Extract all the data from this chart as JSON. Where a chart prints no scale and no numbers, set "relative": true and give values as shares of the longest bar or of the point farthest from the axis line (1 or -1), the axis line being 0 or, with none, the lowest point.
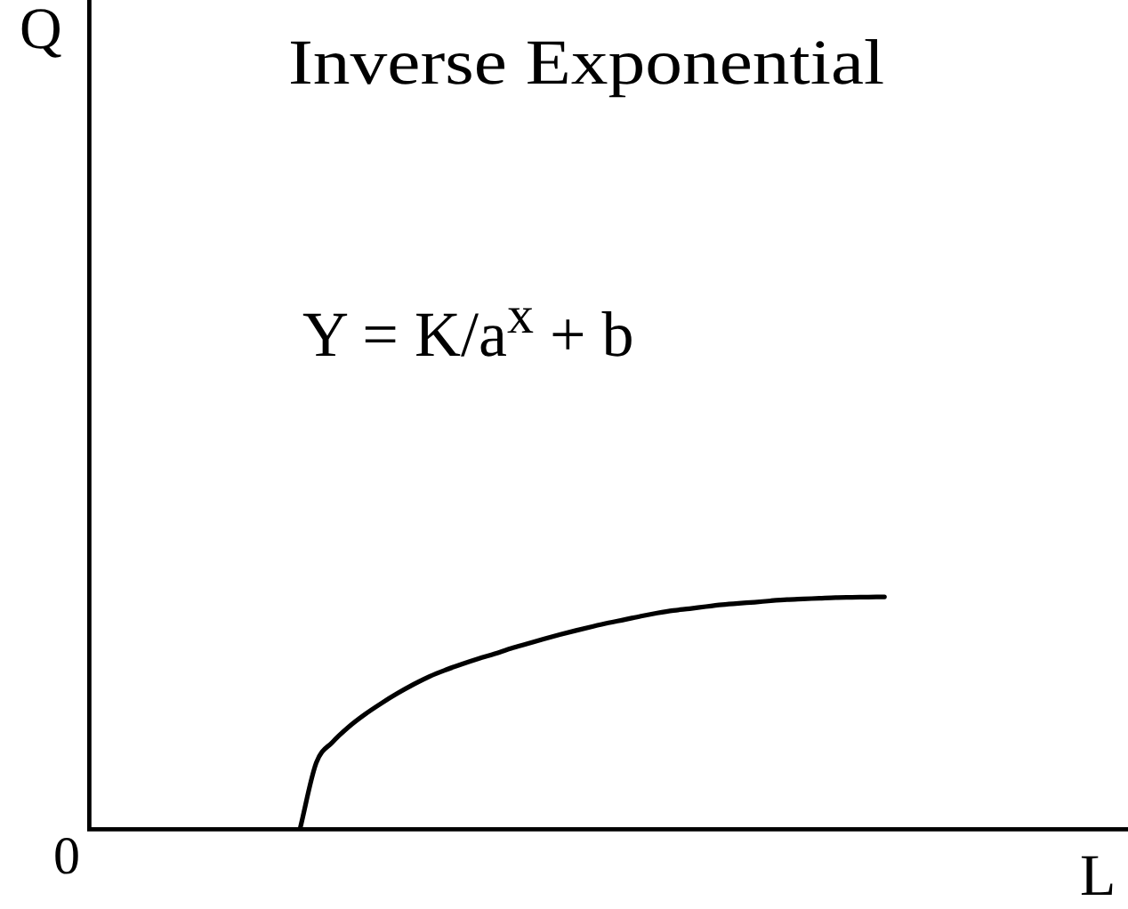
{
  "chart_data": {
    "type": "line",
    "title": "Inverse Exponential",
    "xlabel": "L",
    "annotations": [
      "Q",
      "Y = K/a$^{x}$ + b",
      "0"
    ],
    "categories": [
      null,
      null,
      null,
      null,
      null,
      null,
      null,
      null,
      null,
      null,
      null,
      null,
      null,
      null,
      null,
      null,
      null,
      null,
      null,
      null,
      null,
      null,
      null,
      null,
      null,
      null,
      null,
      null,
      null,
      null,
      null,
      null,
      null,
      null,
      null,
      null,
      null,
      null,
      null,
      null,
      null,
      null,
      null,
      null,
      null,
      null,
      null,
      null,
      null,
      null,
      null,
      null,
      null,
      null,
      null,
      null,
      null,
      null,
      null,
      null,
      null,
      null,
      null,
      null,
      null
    ],
    "values": [
      null,
      null,
      null,
      null,
      null,
      null,
      null,
      null,
      null,
      null,
      null,
      null,
      null,
      0,
      0.285,
      0.374,
      0.44,
      0.494,
      0.541,
      0.584,
      0.623,
      0.658,
      0.686,
      0.711,
      0.734,
      0.755,
      0.778,
      0.798,
      0.818,
      0.837,
      0.855,
      0.872,
      0.888,
      0.902,
      0.917,
      0.93,
      0.941,
      0.949,
      0.958,
      0.966,
      0.972,
      0.977,
      0.983,
      0.988,
      0.991,
      0.994,
      0.997,
      0.998,
      0.999,
      1,
      null,
      null,
      null,
      null,
      null,
      null,
      null,
      null,
      null,
      null,
      null,
      null,
      null,
      null,
      null
    ],
    "color": "#000000",
    "relative": true,
    "marker": "none",
    "grid": false,
    "legend": false
  }
}
